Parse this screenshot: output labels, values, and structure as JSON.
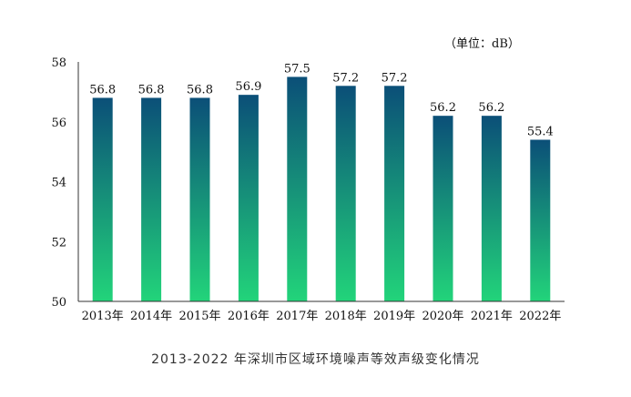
{
  "chart_data": {
    "type": "bar",
    "title": "",
    "unit_label": "（单位：dB）",
    "caption": "2013-2022 年深圳市区域环境噪声等效声级变化情况",
    "categories": [
      "2013年",
      "2014年",
      "2015年",
      "2016年",
      "2017年",
      "2018年",
      "2019年",
      "2020年",
      "2021年",
      "2022年"
    ],
    "values": [
      56.8,
      56.8,
      56.8,
      56.9,
      57.5,
      57.2,
      57.2,
      56.2,
      56.2,
      55.4
    ],
    "data_labels": [
      "56.8",
      "56.8",
      "56.8",
      "56.9",
      "57.5",
      "57.2",
      "57.2",
      "56.2",
      "56.2",
      "55.4"
    ],
    "ylim": [
      50,
      58
    ],
    "yticks": [
      50,
      52,
      54,
      56,
      58
    ],
    "grid": false,
    "legend": "none",
    "colors": {
      "bar_top": "#0b4f78",
      "bar_bottom": "#22d47a",
      "axis": "#333333",
      "text": "#111111"
    }
  }
}
